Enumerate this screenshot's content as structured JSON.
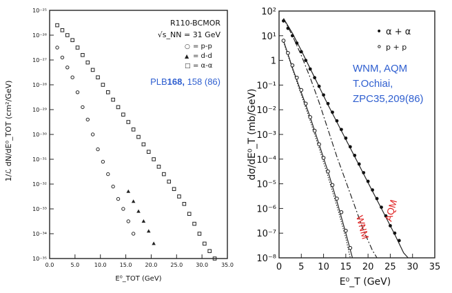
{
  "chart_data": [
    {
      "type": "scatter",
      "panel": "left",
      "title": "R110-BCMOR",
      "energy_label": "√s_NN = 31 GeV",
      "xlabel": "E⁰_TOT (GeV)",
      "ylabel": "1/ℒ dN/dE⁰_TOT (cm²/GeV)",
      "xlim": [
        0,
        35
      ],
      "ylim_log10": [
        -35,
        -25
      ],
      "x_ticks": [
        "0.0",
        "5.0",
        "10.0",
        "15.0",
        "20.0",
        "25.0",
        "30.0",
        "35.0"
      ],
      "y_ticks": [
        "10⁻³⁵",
        "10⁻³⁴",
        "10⁻³³",
        "10⁻³²",
        "10⁻³¹",
        "10⁻³⁰",
        "10⁻²⁹",
        "10⁻²⁸",
        "10⁻²⁷",
        "10⁻²⁶",
        "10⁻²⁵"
      ],
      "legend": [
        {
          "marker": "○",
          "label": "= p-p"
        },
        {
          "marker": "▲",
          "label": "= d-d"
        },
        {
          "marker": "□",
          "label": "= α-α"
        }
      ],
      "reference": {
        "prefix": "PLB",
        "volume": "168,",
        "rest": " 158 (86)"
      },
      "series": [
        {
          "name": "p-p",
          "marker": "circle",
          "x": [
            1.5,
            2.5,
            3.5,
            4.5,
            5.5,
            6.5,
            7.5,
            8.5,
            9.5,
            10.5,
            11.5,
            12.5,
            13.5,
            14.5,
            15.5,
            16.5
          ],
          "log10_y": [
            -26.5,
            -26.9,
            -27.3,
            -27.7,
            -28.3,
            -28.9,
            -29.4,
            -30.0,
            -30.6,
            -31.1,
            -31.6,
            -32.1,
            -32.6,
            -33.0,
            -33.5,
            -34.0
          ]
        },
        {
          "name": "d-d",
          "marker": "triangle",
          "x": [
            15.5,
            16.5,
            17.5,
            18.5,
            19.5,
            20.5
          ],
          "log10_y": [
            -32.3,
            -32.7,
            -33.1,
            -33.5,
            -33.9,
            -34.4
          ]
        },
        {
          "name": "α-α",
          "marker": "square",
          "x": [
            1.5,
            2.5,
            3.5,
            4.5,
            5.5,
            6.5,
            7.5,
            8.5,
            9.5,
            10.5,
            11.5,
            12.5,
            13.5,
            14.5,
            15.5,
            16.5,
            17.5,
            18.5,
            19.5,
            20.5,
            21.5,
            22.5,
            23.5,
            24.5,
            25.5,
            26.5,
            27.5,
            28.5,
            29.5,
            30.5,
            31.5,
            32.5
          ],
          "log10_y": [
            -25.6,
            -25.8,
            -26.0,
            -26.2,
            -26.5,
            -26.8,
            -27.1,
            -27.4,
            -27.7,
            -28.0,
            -28.3,
            -28.6,
            -28.9,
            -29.2,
            -29.5,
            -29.8,
            -30.1,
            -30.4,
            -30.7,
            -31.0,
            -31.3,
            -31.6,
            -31.9,
            -32.2,
            -32.5,
            -32.8,
            -33.2,
            -33.6,
            -34.0,
            -34.4,
            -34.7,
            -35.0
          ]
        }
      ]
    },
    {
      "type": "scatter",
      "panel": "right",
      "title": "",
      "xlabel": "E⁰_T (GeV)",
      "ylabel": "dσ/dE⁰_T (mb/GeV)",
      "xlim": [
        0,
        35
      ],
      "ylim_log10": [
        -8,
        2
      ],
      "x_ticks": [
        "0",
        "5",
        "10",
        "15",
        "20",
        "25",
        "30",
        "35"
      ],
      "y_ticks": [
        "10⁻⁸",
        "10⁻⁷",
        "10⁻⁶",
        "10⁻⁵",
        "10⁻⁴",
        "10⁻³",
        "10⁻²",
        "10⁻¹",
        "1",
        "10¹",
        "10²"
      ],
      "legend": [
        {
          "marker": "•",
          "label": "α + α"
        },
        {
          "marker": "∘",
          "label": "p + p"
        }
      ],
      "reference": {
        "line1": "WNM, AQM",
        "line2": "T.Ochiai,",
        "line3": "ZPC35,209(86)"
      },
      "curve_labels": [
        "WNM",
        "AQM"
      ],
      "series": [
        {
          "name": "α + α",
          "marker": "dot",
          "x": [
            1,
            2,
            3,
            4,
            5,
            6,
            7,
            8,
            9,
            10,
            11,
            12,
            13,
            14,
            15,
            16,
            17,
            18,
            19,
            20,
            21,
            22,
            23,
            24,
            25,
            26,
            27
          ],
          "log10_y": [
            1.6,
            1.3,
            1.0,
            0.7,
            0.35,
            0.0,
            -0.35,
            -0.7,
            -1.05,
            -1.4,
            -1.75,
            -2.1,
            -2.45,
            -2.8,
            -3.15,
            -3.5,
            -3.85,
            -4.2,
            -4.55,
            -4.9,
            -5.25,
            -5.6,
            -5.95,
            -6.3,
            -6.7,
            -7.0,
            -7.3
          ]
        },
        {
          "name": "p + p",
          "marker": "ring",
          "x": [
            1,
            2,
            3,
            4,
            5,
            6,
            7,
            8,
            9,
            10,
            11,
            12,
            13,
            14,
            15,
            16
          ],
          "log10_y": [
            0.8,
            0.3,
            -0.2,
            -0.7,
            -1.2,
            -1.75,
            -2.3,
            -2.85,
            -3.4,
            -3.95,
            -4.5,
            -5.05,
            -5.6,
            -6.15,
            -6.9,
            -7.6
          ]
        }
      ],
      "curves": [
        {
          "name": "AQM α+α",
          "style": "solid",
          "x": [
            1,
            3,
            5,
            8,
            11,
            14,
            17,
            20,
            23,
            26,
            28,
            29
          ],
          "log10_y": [
            1.7,
            1.1,
            0.4,
            -0.7,
            -1.8,
            -2.85,
            -3.9,
            -4.95,
            -6.0,
            -7.05,
            -7.8,
            -8.0
          ]
        },
        {
          "name": "WNM α+α",
          "style": "dashdot",
          "x": [
            1,
            3,
            5,
            7,
            9,
            11,
            13,
            15,
            17,
            19,
            21,
            22
          ],
          "log10_y": [
            1.7,
            1.0,
            0.2,
            -0.7,
            -1.7,
            -2.8,
            -3.9,
            -4.9,
            -5.9,
            -6.9,
            -7.7,
            -8.0
          ]
        },
        {
          "name": "AQM p+p",
          "style": "solid",
          "x": [
            1,
            3,
            5,
            7,
            9,
            11,
            13,
            15,
            16.5
          ],
          "log10_y": [
            0.8,
            -0.3,
            -1.3,
            -2.3,
            -3.4,
            -4.5,
            -5.7,
            -7.0,
            -8.0
          ]
        },
        {
          "name": "WNM p+p",
          "style": "dotted",
          "x": [
            1,
            3,
            5,
            7,
            9,
            11,
            13,
            15,
            16
          ],
          "log10_y": [
            0.75,
            -0.35,
            -1.4,
            -2.45,
            -3.55,
            -4.7,
            -5.9,
            -7.2,
            -8.0
          ]
        }
      ]
    }
  ]
}
